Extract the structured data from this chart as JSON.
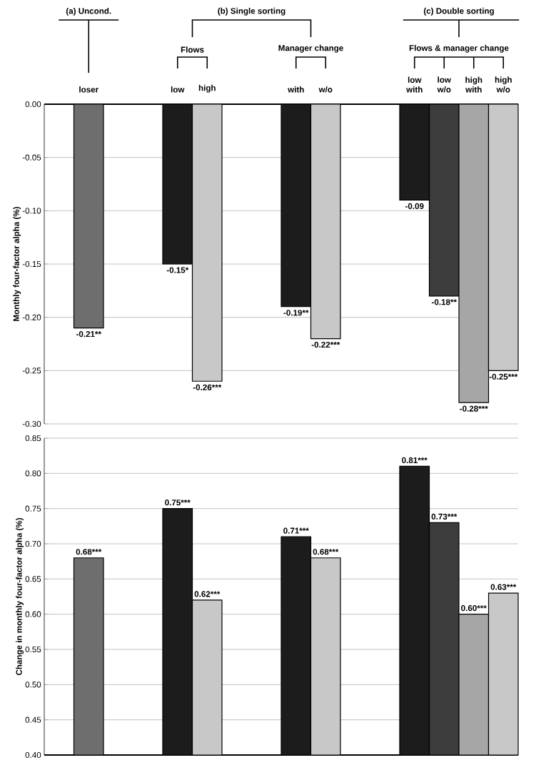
{
  "chart_data": [
    {
      "type": "bar",
      "ylabel": "Monthly four-factor alpha (%)",
      "categories": [
        "loser",
        null,
        null,
        "low",
        "high",
        null,
        null,
        "with",
        "w/o",
        null,
        null,
        "low with",
        "low w/o",
        "high with",
        "high w/o"
      ],
      "values": [
        -0.21,
        null,
        null,
        -0.15,
        -0.26,
        null,
        null,
        -0.19,
        -0.22,
        null,
        null,
        -0.09,
        -0.18,
        -0.28,
        -0.25
      ],
      "colors": [
        "#6e6e6e",
        null,
        null,
        "#1c1c1c",
        "#c8c8c8",
        null,
        null,
        "#1c1c1c",
        "#c8c8c8",
        null,
        null,
        "#1c1c1c",
        "#3c3c3c",
        "#a6a6a6",
        "#c8c8c8"
      ],
      "value_labels": [
        "-0.21**",
        null,
        null,
        "-0.15*",
        "-0.26***",
        null,
        null,
        "-0.19**",
        "-0.22***",
        null,
        null,
        "-0.09",
        "-0.18**",
        "-0.28***",
        "-0.25***"
      ],
      "ylim": [
        -0.3,
        0
      ],
      "yticks": [
        {
          "value": 0,
          "label": "0.00"
        },
        {
          "value": -0.05,
          "label": "-0.05"
        },
        {
          "value": -0.1,
          "label": "-0.10"
        },
        {
          "value": -0.15,
          "label": "-0.15"
        },
        {
          "value": -0.2,
          "label": "-0.20"
        },
        {
          "value": -0.25,
          "label": "-0.25"
        },
        {
          "value": -0.3,
          "label": "-0.30"
        }
      ],
      "grid": "y",
      "annotations": [
        "(a) Uncond.",
        "(b) Single sorting",
        "(c) Double sorting",
        "Flows",
        "Manager change",
        "Flows & manager change"
      ]
    },
    {
      "type": "bar",
      "ylabel": "Change in monthly four-factor alpha (%)",
      "categories": [
        null,
        null,
        null,
        null,
        null,
        null,
        null,
        null,
        null,
        null,
        null,
        null,
        null,
        null,
        null
      ],
      "values": [
        0.68,
        null,
        null,
        0.75,
        0.62,
        null,
        null,
        0.71,
        0.68,
        null,
        null,
        0.81,
        0.73,
        0.6,
        0.63
      ],
      "colors": [
        "#6e6e6e",
        null,
        null,
        "#1c1c1c",
        "#c8c8c8",
        null,
        null,
        "#1c1c1c",
        "#c8c8c8",
        null,
        null,
        "#1c1c1c",
        "#3c3c3c",
        "#a6a6a6",
        "#c8c8c8"
      ],
      "value_labels": [
        "0.68***",
        null,
        null,
        "0.75***",
        "0.62***",
        null,
        null,
        "0.71***",
        "0.68***",
        null,
        null,
        "0.81***",
        "0.73***",
        "0.60***",
        "0.63***"
      ],
      "ylim": [
        0.4,
        0.85
      ],
      "yticks": [
        {
          "value": 0.4,
          "label": "0.40"
        },
        {
          "value": 0.45,
          "label": "0.45"
        },
        {
          "value": 0.5,
          "label": "0.50"
        },
        {
          "value": 0.55,
          "label": "0.55"
        },
        {
          "value": 0.6,
          "label": "0.60"
        },
        {
          "value": 0.65,
          "label": "0.65"
        },
        {
          "value": 0.7,
          "label": "0.70"
        },
        {
          "value": 0.75,
          "label": "0.75"
        },
        {
          "value": 0.8,
          "label": "0.80"
        },
        {
          "value": 0.85,
          "label": "0.85"
        }
      ],
      "grid": "y",
      "tick_labels": "y"
    }
  ]
}
